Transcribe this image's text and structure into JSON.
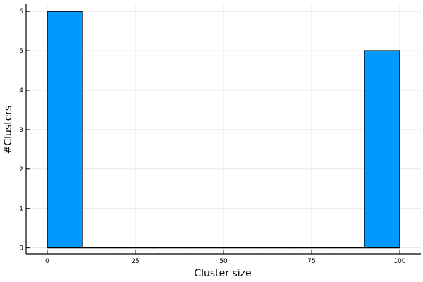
{
  "chart_data": {
    "type": "bar",
    "subtype": "histogram",
    "xlabel": "Cluster size",
    "ylabel": "#Clusters",
    "xlim": [
      -6,
      106
    ],
    "ylim": [
      -0.15,
      6.2
    ],
    "xticks": [
      0,
      25,
      50,
      75,
      100
    ],
    "yticks": [
      0,
      1,
      2,
      3,
      4,
      5,
      6
    ],
    "grid": true,
    "bar_color": "#0099ff",
    "bins": [
      {
        "x0": 0,
        "x1": 10,
        "count": 6
      },
      {
        "x0": 10,
        "x1": 20,
        "count": 0
      },
      {
        "x0": 20,
        "x1": 30,
        "count": 0
      },
      {
        "x0": 30,
        "x1": 40,
        "count": 0
      },
      {
        "x0": 40,
        "x1": 50,
        "count": 0
      },
      {
        "x0": 50,
        "x1": 60,
        "count": 0
      },
      {
        "x0": 60,
        "x1": 70,
        "count": 0
      },
      {
        "x0": 70,
        "x1": 80,
        "count": 0
      },
      {
        "x0": 80,
        "x1": 90,
        "count": 0
      },
      {
        "x0": 90,
        "x1": 100,
        "count": 5
      }
    ]
  }
}
